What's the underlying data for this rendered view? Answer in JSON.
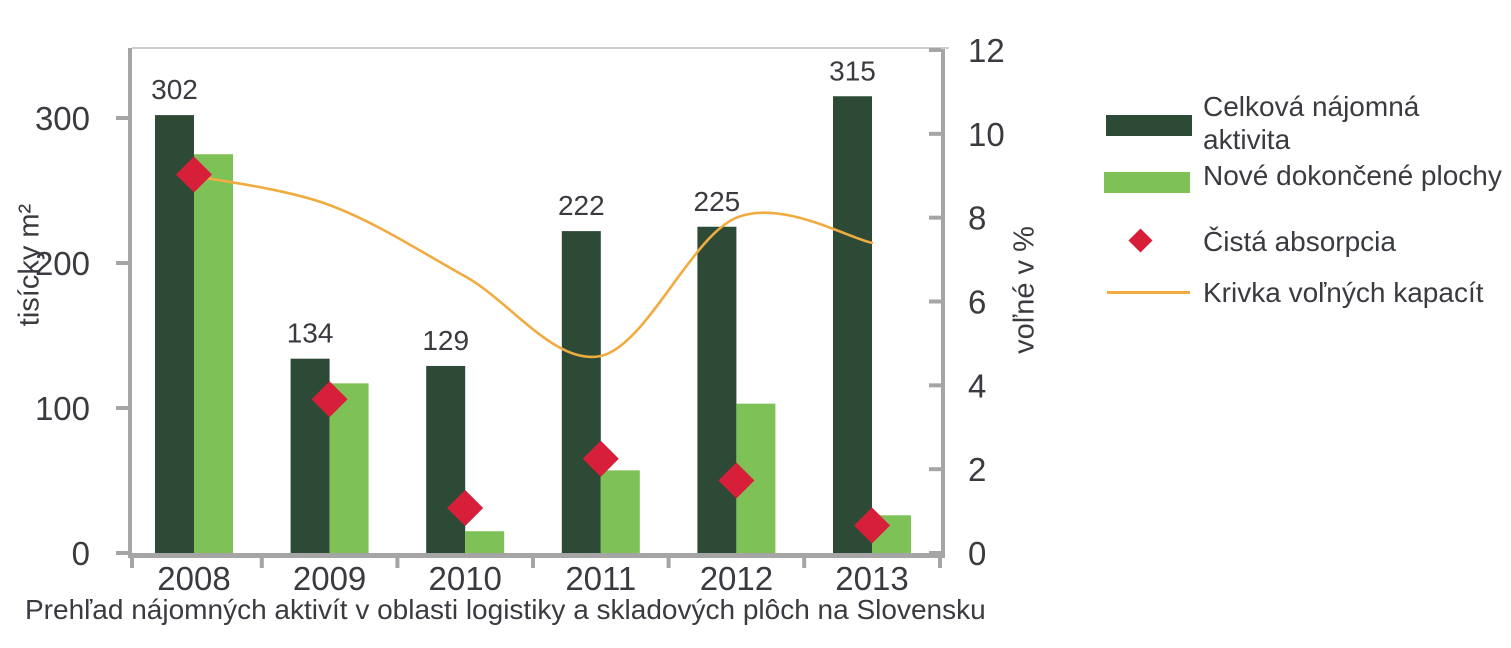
{
  "figure": {
    "caption": "Prehľad nájomných aktivít v oblasti logistiky a skladových plôch na Slovensku"
  },
  "colors": {
    "dark_green": "#2d4a36",
    "light_green": "#7ec157",
    "red": "#d81f3a",
    "yellow": "#f0ab41",
    "axis": "#a5a5a5",
    "plot_top_border": "#cdcdcd",
    "text": "#3a3a40"
  },
  "chart_data": {
    "type": "bar",
    "subtype": "grouped bars + diamond scatter + smooth line, dual y-axis",
    "categories": [
      "2008",
      "2009",
      "2010",
      "2011",
      "2012",
      "2013"
    ],
    "series": [
      {
        "name": "Celková nájomná aktivita",
        "type": "bar",
        "axis": "left",
        "color": "#2d4a36",
        "values": [
          302,
          134,
          129,
          222,
          225,
          315
        ],
        "data_labels": [
          "302",
          "134",
          "129",
          "222",
          "225",
          "315"
        ]
      },
      {
        "name": "Nové dokončené plochy",
        "type": "bar",
        "axis": "left",
        "color": "#7ec157",
        "values": [
          275,
          117,
          15,
          57,
          103,
          26
        ]
      },
      {
        "name": "Čistá absorpcia",
        "type": "scatter",
        "marker": "diamond",
        "axis": "left",
        "color": "#d81f3a",
        "values": [
          261,
          106,
          31,
          65,
          50,
          19
        ]
      },
      {
        "name": "Krivka voľných kapacít",
        "type": "line",
        "axis": "right",
        "color": "#f0ab41",
        "values": [
          9.0,
          8.3,
          6.6,
          4.7,
          8.0,
          7.4
        ]
      }
    ],
    "left_axis": {
      "title": "tisícky m²",
      "ticks": [
        0,
        100,
        200,
        300
      ],
      "range": [
        0,
        348
      ]
    },
    "right_axis": {
      "title": "voľné v %",
      "ticks": [
        0,
        2,
        4,
        6,
        8,
        10,
        12
      ],
      "range": [
        0,
        12
      ]
    },
    "x_axis": {
      "tick_labels": [
        "2008",
        "2009",
        "2010",
        "2011",
        "2012",
        "2013"
      ]
    },
    "grid": false,
    "legend_position": "right"
  },
  "legend": {
    "items": [
      {
        "label": "Celková nájomná\naktivita",
        "marker": "dark-green-swatch"
      },
      {
        "label": "Nové dokončené plochy",
        "marker": "light-green-swatch"
      },
      {
        "label": "Čistá absorpcia",
        "marker": "red-diamond"
      },
      {
        "label": "Krivka voľných kapacít",
        "marker": "yellow-line"
      }
    ]
  }
}
